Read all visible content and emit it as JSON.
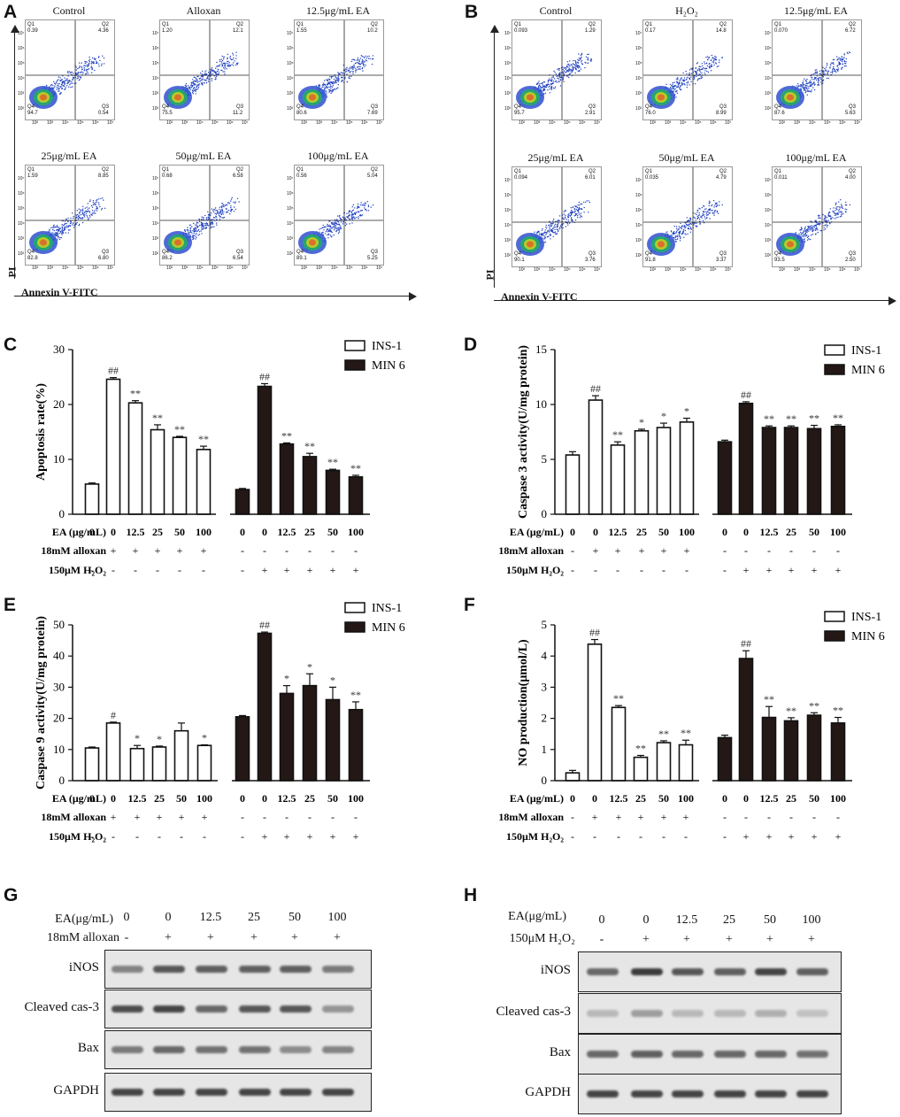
{
  "panels": {
    "A": {
      "letter": "A",
      "y_label": "PI",
      "x_label": "Annexin V-FITC",
      "plots": [
        {
          "title": "Control",
          "q1": "Q1",
          "q2": "Q2",
          "q3": "Q3",
          "q4": "Q4",
          "v1": "0.39",
          "v2": "4.36",
          "v3": "0.54",
          "v4": "94.7"
        },
        {
          "title": "Alloxan",
          "q1": "Q1",
          "q2": "Q2",
          "q3": "Q3",
          "q4": "Q4",
          "v1": "1.20",
          "v2": "12.1",
          "v3": "11.2",
          "v4": "75.5"
        },
        {
          "title": "12.5μg/mL EA",
          "q1": "Q1",
          "q2": "Q2",
          "q3": "Q3",
          "q4": "Q4",
          "v1": "1.55",
          "v2": "10.2",
          "v3": "7.69",
          "v4": "80.6"
        },
        {
          "title": "25μg/mL EA",
          "q1": "Q1",
          "q2": "Q2",
          "q3": "Q3",
          "q4": "Q4",
          "v1": "1.59",
          "v2": "8.85",
          "v3": "6.80",
          "v4": "82.8"
        },
        {
          "title": "50μg/mL EA",
          "q1": "Q1",
          "q2": "Q2",
          "q3": "Q3",
          "q4": "Q4",
          "v1": "0.68",
          "v2": "6.58",
          "v3": "6.54",
          "v4": "86.2"
        },
        {
          "title": "100μg/mL EA",
          "q1": "Q1",
          "q2": "Q2",
          "q3": "Q3",
          "q4": "Q4",
          "v1": "0.56",
          "v2": "5.04",
          "v3": "5.25",
          "v4": "89.1"
        }
      ]
    },
    "B": {
      "letter": "B",
      "y_label": "PI",
      "x_label": "Annexin V-FITC",
      "plots": [
        {
          "title": "Control",
          "q1": "Q1",
          "q2": "Q2",
          "q3": "Q3",
          "q4": "Q4",
          "v1": "0.093",
          "v2": "1.29",
          "v3": "2.91",
          "v4": "95.7"
        },
        {
          "title": "H₂O₂",
          "q1": "Q1",
          "q2": "Q2",
          "q3": "Q3",
          "q4": "Q4",
          "v1": "0.17",
          "v2": "14.8",
          "v3": "8.99",
          "v4": "76.0"
        },
        {
          "title": "12.5μg/mL EA",
          "q1": "Q1",
          "q2": "Q2",
          "q3": "Q3",
          "q4": "Q4",
          "v1": "0.070",
          "v2": "6.72",
          "v3": "5.63",
          "v4": "87.6"
        },
        {
          "title": "25μg/mL EA",
          "q1": "Q1",
          "q2": "Q2",
          "q3": "Q3",
          "q4": "Q4",
          "v1": "0.094",
          "v2": "6.01",
          "v3": "3.76",
          "v4": "90.1"
        },
        {
          "title": "50μg/mL EA",
          "q1": "Q1",
          "q2": "Q2",
          "q3": "Q3",
          "q4": "Q4",
          "v1": "0.035",
          "v2": "4.79",
          "v3": "3.37",
          "v4": "91.8"
        },
        {
          "title": "100μg/mL EA",
          "q1": "Q1",
          "q2": "Q2",
          "q3": "Q3",
          "q4": "Q4",
          "v1": "0.011",
          "v2": "4.00",
          "v3": "2.50",
          "v4": "93.5"
        }
      ]
    },
    "flow_ticks": [
      "10⁰",
      "10¹",
      "10²",
      "10³",
      "10⁴",
      "10⁵",
      "10⁶",
      "10⁷"
    ],
    "G": {
      "letter": "G",
      "header_row1_label": "EA(μg/mL)",
      "header_row1": [
        "0",
        "0",
        "12.5",
        "25",
        "50",
        "100"
      ],
      "header_row2_label": "18mM alloxan",
      "header_row2": [
        "-",
        "+",
        "+",
        "+",
        "+",
        "+"
      ],
      "rows": [
        "iNOS",
        "Cleaved cas-3",
        "Bax",
        "GAPDH"
      ]
    },
    "H": {
      "letter": "H",
      "header_row1_label": "EA(μg/mL)",
      "header_row1": [
        "0",
        "0",
        "12.5",
        "25",
        "50",
        "100"
      ],
      "header_row2_label": "150μM H₂O₂",
      "header_row2": [
        "-",
        "+",
        "+",
        "+",
        "+",
        "+"
      ],
      "rows": [
        "iNOS",
        "Cleaved cas-3",
        "Bax",
        "GAPDH"
      ]
    }
  },
  "chart_data": [
    {
      "panel": "C",
      "type": "bar",
      "ylabel": "Apoptosis rate(%)",
      "ylim": [
        0,
        30
      ],
      "yticks": [
        0,
        10,
        20,
        30
      ],
      "legend": [
        "INS-1",
        "MIN 6"
      ],
      "series": [
        {
          "name": "INS-1",
          "fill": "#ffffff",
          "values": [
            5.5,
            24.6,
            20.3,
            15.4,
            14.0,
            11.8
          ],
          "errors": [
            0.2,
            0.3,
            0.4,
            0.9,
            0.2,
            0.6
          ],
          "sig": [
            "",
            "##",
            "**",
            "**",
            "**",
            "**"
          ]
        },
        {
          "name": "MIN 6",
          "fill": "#231815",
          "values": [
            4.5,
            23.3,
            12.8,
            10.5,
            8.0,
            6.8
          ],
          "errors": [
            0.2,
            0.5,
            0.2,
            0.6,
            0.2,
            0.3
          ],
          "sig": [
            "",
            "##",
            "**",
            "**",
            "**",
            "**"
          ]
        }
      ],
      "x_row_label": "EA (μg/mL)",
      "x_row": [
        "0",
        "0",
        "12.5",
        "25",
        "50",
        "100"
      ],
      "row2_label": "18mM alloxan",
      "row2": [
        "-",
        "+",
        "+",
        "+",
        "+",
        "+",
        "-",
        "-",
        "-",
        "-",
        "-",
        "-"
      ],
      "row3_label": "150μM H₂O₂",
      "row3": [
        "-",
        "-",
        "-",
        "-",
        "-",
        "-",
        "-",
        "+",
        "+",
        "+",
        "+",
        "+"
      ]
    },
    {
      "panel": "D",
      "type": "bar",
      "ylabel": "Caspase 3 activity(U/mg protein)",
      "ylim": [
        0,
        15
      ],
      "yticks": [
        0,
        5,
        10,
        15
      ],
      "legend": [
        "INS-1",
        "MIN 6"
      ],
      "series": [
        {
          "name": "INS-1",
          "fill": "#ffffff",
          "values": [
            5.4,
            10.4,
            6.3,
            7.6,
            7.9,
            8.4
          ],
          "errors": [
            0.3,
            0.4,
            0.3,
            0.15,
            0.4,
            0.35
          ],
          "sig": [
            "",
            "##",
            "**",
            "*",
            "*",
            "*"
          ]
        },
        {
          "name": "MIN 6",
          "fill": "#231815",
          "values": [
            6.6,
            10.1,
            7.9,
            7.9,
            7.8,
            8.0
          ],
          "errors": [
            0.15,
            0.15,
            0.15,
            0.15,
            0.3,
            0.15
          ],
          "sig": [
            "",
            "##",
            "**",
            "**",
            "**",
            "**"
          ]
        }
      ],
      "x_row_label": "EA (μg/mL)",
      "x_row": [
        "0",
        "0",
        "12.5",
        "25",
        "50",
        "100"
      ],
      "row2_label": "18mM alloxan",
      "row2": [
        "-",
        "+",
        "+",
        "+",
        "+",
        "+",
        "-",
        "-",
        "-",
        "-",
        "-",
        "-"
      ],
      "row3_label": "150μM H₂O₂",
      "row3": [
        "-",
        "-",
        "-",
        "-",
        "-",
        "-",
        "-",
        "+",
        "+",
        "+",
        "+",
        "+"
      ]
    },
    {
      "panel": "E",
      "type": "bar",
      "ylabel": "Caspase 9 activity(U/mg protein)",
      "ylim": [
        0,
        50
      ],
      "yticks": [
        0,
        10,
        20,
        30,
        40,
        50
      ],
      "legend": [
        "INS-1",
        "MIN 6"
      ],
      "series": [
        {
          "name": "INS-1",
          "fill": "#ffffff",
          "values": [
            10.5,
            18.5,
            10.3,
            10.8,
            16.0,
            11.3
          ],
          "errors": [
            0.3,
            0.3,
            1.0,
            0.3,
            2.5,
            0.2
          ],
          "sig": [
            "",
            "#",
            "*",
            "*",
            "",
            "*"
          ]
        },
        {
          "name": "MIN 6",
          "fill": "#231815",
          "values": [
            20.5,
            47.3,
            28.0,
            30.5,
            26.0,
            22.8
          ],
          "errors": [
            0.4,
            0.4,
            2.5,
            3.8,
            4.0,
            2.5
          ],
          "sig": [
            "",
            "##",
            "*",
            "*",
            "*",
            "**"
          ]
        }
      ],
      "x_row_label": "EA (μg/mL)",
      "x_row": [
        "0",
        "0",
        "12.5",
        "25",
        "50",
        "100"
      ],
      "row2_label": "18mM alloxan",
      "row2": [
        "-",
        "+",
        "+",
        "+",
        "+",
        "+",
        "-",
        "-",
        "-",
        "-",
        "-",
        "-"
      ],
      "row3_label": "150μM H₂O₂",
      "row3": [
        "-",
        "-",
        "-",
        "-",
        "-",
        "-",
        "-",
        "+",
        "+",
        "+",
        "+",
        "+"
      ]
    },
    {
      "panel": "F",
      "type": "bar",
      "ylabel": "NO production(μmol/L)",
      "ylim": [
        0,
        5
      ],
      "yticks": [
        0,
        1,
        2,
        3,
        4,
        5
      ],
      "legend": [
        "INS-1",
        "MIN 6"
      ],
      "series": [
        {
          "name": "INS-1",
          "fill": "#ffffff",
          "values": [
            0.25,
            4.38,
            2.35,
            0.75,
            1.22,
            1.15
          ],
          "errors": [
            0.08,
            0.15,
            0.06,
            0.06,
            0.06,
            0.15
          ],
          "sig": [
            "",
            "##",
            "**",
            "**",
            "**",
            "**"
          ]
        },
        {
          "name": "MIN 6",
          "fill": "#231815",
          "values": [
            1.38,
            3.92,
            2.03,
            1.92,
            2.1,
            1.85
          ],
          "errors": [
            0.08,
            0.25,
            0.35,
            0.1,
            0.08,
            0.18
          ],
          "sig": [
            "",
            "##",
            "**",
            "**",
            "**",
            "**"
          ]
        }
      ],
      "x_row_label": "EA (μg/mL)",
      "x_row": [
        "0",
        "0",
        "12.5",
        "25",
        "50",
        "100"
      ],
      "row2_label": "18mM alloxan",
      "row2": [
        "-",
        "+",
        "+",
        "+",
        "+",
        "+",
        "-",
        "-",
        "-",
        "-",
        "-",
        "-"
      ],
      "row3_label": "150μM H₂O₂",
      "row3": [
        "-",
        "-",
        "-",
        "-",
        "-",
        "-",
        "-",
        "+",
        "+",
        "+",
        "+",
        "+"
      ]
    }
  ]
}
